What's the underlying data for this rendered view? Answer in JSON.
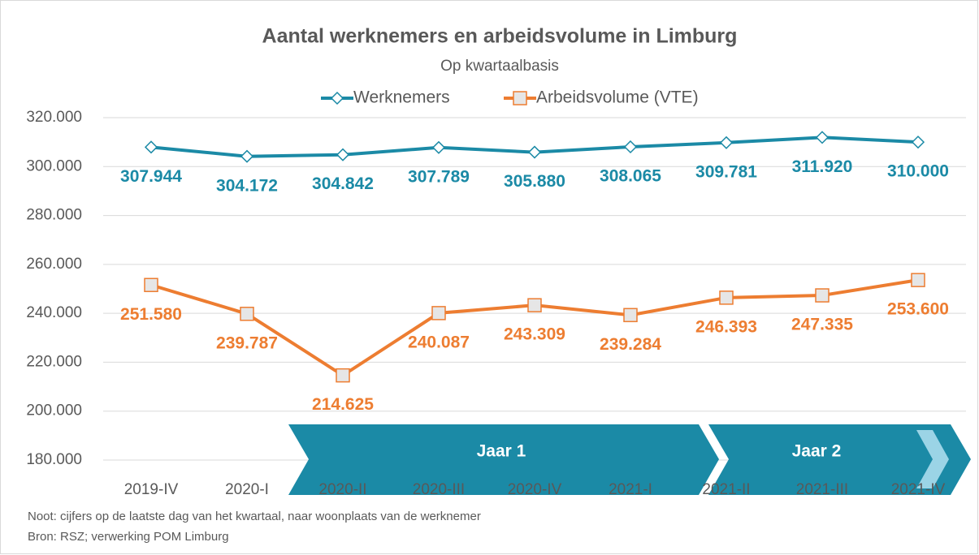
{
  "chart_data": {
    "type": "line",
    "title": "Aantal werknemers en arbeidsvolume in Limburg",
    "subtitle": "Op kwartaalbasis",
    "categories": [
      "2019-IV",
      "2020-I",
      "2020-II",
      "2020-III",
      "2020-IV",
      "2021-I",
      "2021-II",
      "2021-III",
      "2021-IV"
    ],
    "series": [
      {
        "name": "Werknemers",
        "color": "#1b8aa6",
        "marker": "diamond",
        "values": [
          307944,
          304172,
          304842,
          307789,
          305880,
          308065,
          309781,
          311920,
          310000
        ],
        "value_labels": [
          "307.944",
          "304.172",
          "304.842",
          "307.789",
          "305.880",
          "308.065",
          "309.781",
          "311.920",
          "310.000"
        ]
      },
      {
        "name": "Arbeidsvolume (VTE)",
        "color": "#ed7d31",
        "marker": "square",
        "values": [
          251580,
          239787,
          214625,
          240087,
          243309,
          239284,
          246393,
          247335,
          253600
        ],
        "value_labels": [
          "251.580",
          "239.787",
          "214.625",
          "240.087",
          "243.309",
          "239.284",
          "246.393",
          "247.335",
          "253.600"
        ]
      }
    ],
    "ylim": [
      180000,
      320000
    ],
    "yticks": [
      {
        "value": 180000,
        "label": "180.000"
      },
      {
        "value": 200000,
        "label": "200.000"
      },
      {
        "value": 220000,
        "label": "220.000"
      },
      {
        "value": 240000,
        "label": "240.000"
      },
      {
        "value": 260000,
        "label": "260.000"
      },
      {
        "value": 280000,
        "label": "280.000"
      },
      {
        "value": 300000,
        "label": "300.000"
      },
      {
        "value": 320000,
        "label": "320.000"
      }
    ],
    "grid": true,
    "legend": "top",
    "annotations": [
      "Jaar 1",
      "Jaar 2"
    ],
    "notes": [
      "Noot: cijfers op de laatste dag van het kwartaal, naar woonplaats van de werknemer",
      "Bron: RSZ; verwerking POM Limburg"
    ]
  }
}
